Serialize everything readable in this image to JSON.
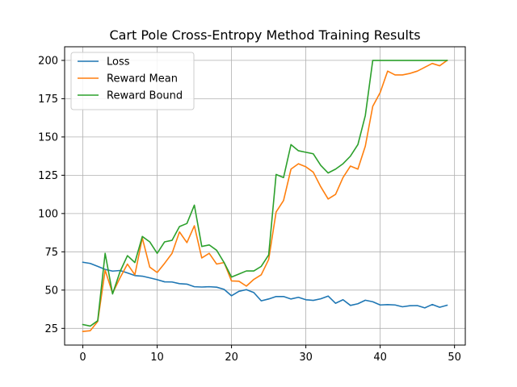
{
  "chart_data": {
    "type": "line",
    "title": "Cart Pole Cross-Entropy Method Training Results",
    "xlabel": "",
    "ylabel": "",
    "xlim": [
      -2.45,
      51.45
    ],
    "ylim": [
      14.1,
      208.9
    ],
    "xticks": [
      0,
      10,
      20,
      30,
      40,
      50
    ],
    "yticks": [
      25,
      50,
      75,
      100,
      125,
      150,
      175,
      200
    ],
    "xtick_labels": [
      "0",
      "10",
      "20",
      "30",
      "40",
      "50"
    ],
    "ytick_labels": [
      "25",
      "50",
      "75",
      "100",
      "125",
      "150",
      "175",
      "200"
    ],
    "grid": true,
    "legend_position": "upper-left",
    "x": [
      0,
      1,
      2,
      3,
      4,
      5,
      6,
      7,
      8,
      9,
      10,
      11,
      12,
      13,
      14,
      15,
      16,
      17,
      18,
      19,
      20,
      21,
      22,
      23,
      24,
      25,
      26,
      27,
      28,
      29,
      30,
      31,
      32,
      33,
      34,
      35,
      36,
      37,
      38,
      39,
      40,
      41,
      42,
      43,
      44,
      45,
      46,
      47,
      48,
      49
    ],
    "series": [
      {
        "name": "Loss",
        "color": "#1f77b4",
        "values": [
          68.2,
          67.4,
          65.5,
          63.5,
          62.4,
          62.8,
          61.2,
          59.5,
          59.1,
          58.0,
          56.8,
          55.4,
          55.3,
          54.2,
          53.9,
          52.2,
          52.0,
          52.2,
          51.9,
          50.5,
          46.3,
          49.2,
          50.3,
          48.4,
          43.0,
          44.2,
          45.8,
          45.8,
          44.2,
          45.3,
          43.7,
          43.3,
          44.3,
          46.1,
          41.4,
          43.7,
          40.0,
          41.1,
          43.4,
          42.4,
          40.3,
          40.5,
          40.3,
          39.1,
          39.8,
          39.9,
          38.4,
          40.6,
          38.8,
          40.1
        ]
      },
      {
        "name": "Reward Mean",
        "color": "#ff7f0e",
        "values": [
          23.0,
          23.5,
          29.5,
          63.0,
          48.0,
          58.0,
          67.0,
          60.0,
          84.0,
          65.0,
          61.5,
          67.5,
          74.0,
          88.0,
          81.0,
          92.0,
          71.0,
          74.0,
          67.0,
          68.0,
          56.0,
          55.8,
          52.6,
          57.0,
          60.0,
          70.0,
          101.0,
          108.5,
          129.0,
          132.5,
          130.5,
          127.0,
          117.5,
          109.5,
          112.5,
          123.5,
          131.0,
          129.0,
          144.0,
          170.0,
          179.0,
          193.0,
          190.5,
          190.5,
          191.5,
          193.0,
          195.5,
          198.0,
          196.5,
          200.0
        ]
      },
      {
        "name": "Reward Bound",
        "color": "#2ca02c",
        "values": [
          27.5,
          26.5,
          30.0,
          74.0,
          47.5,
          62.0,
          72.5,
          68.0,
          85.0,
          81.5,
          74.0,
          81.5,
          82.5,
          91.5,
          93.5,
          105.5,
          78.5,
          79.5,
          76.0,
          68.0,
          58.5,
          60.5,
          62.5,
          62.5,
          65.5,
          73.0,
          125.5,
          123.5,
          145.0,
          141.0,
          140.0,
          139.0,
          131.5,
          126.5,
          129.0,
          132.5,
          137.5,
          145.0,
          164.0,
          200.0,
          200.0,
          200.0,
          200.0,
          200.0,
          200.0,
          200.0,
          200.0,
          200.0,
          200.0,
          200.0
        ]
      }
    ]
  }
}
